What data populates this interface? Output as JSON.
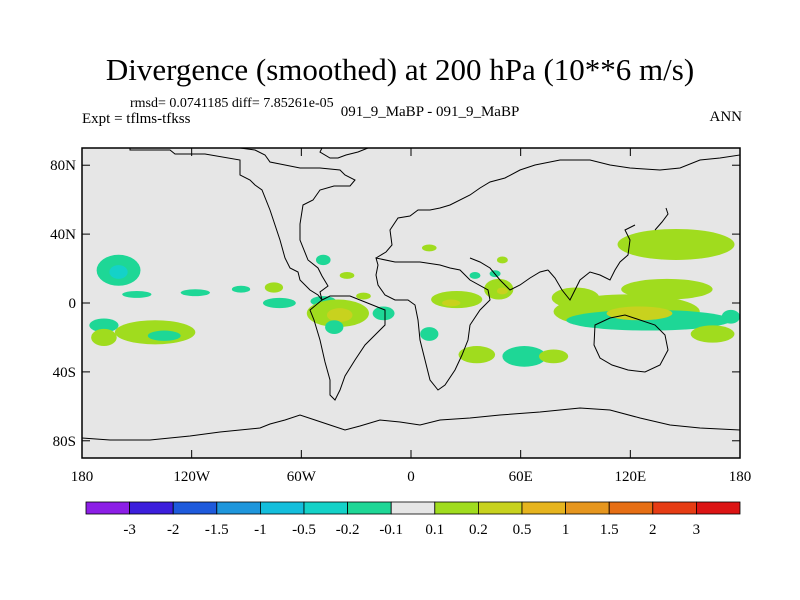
{
  "title": "Divergence (smoothed) at 200 hPa (10**6 m/s)",
  "stats": "rmsd= 0.0741185 diff= 7.85261e-05",
  "case_label": "091_9_MaBP - 091_9_MaBP",
  "experiment": "Expt = tflms-tfkss",
  "season": "ANN",
  "chart_data": {
    "type": "heatmap",
    "title": "Divergence (smoothed) at 200 hPa (10**6 m/s)",
    "x_ticks": [
      {
        "value": -180,
        "label": "180"
      },
      {
        "value": -120,
        "label": "120W"
      },
      {
        "value": -60,
        "label": "60W"
      },
      {
        "value": 0,
        "label": "0"
      },
      {
        "value": 60,
        "label": "60E"
      },
      {
        "value": 120,
        "label": "120E"
      },
      {
        "value": 180,
        "label": "180"
      }
    ],
    "y_ticks": [
      {
        "value": 80,
        "label": "80N"
      },
      {
        "value": 40,
        "label": "40N"
      },
      {
        "value": 0,
        "label": "0"
      },
      {
        "value": -40,
        "label": "40S"
      },
      {
        "value": -80,
        "label": "80S"
      }
    ],
    "xlim": [
      -180,
      180
    ],
    "ylim": [
      -90,
      90
    ],
    "background_color": "#e6e6e6",
    "colorbar": {
      "colors": [
        "#8c1ee6",
        "#3c1edc",
        "#1e5adc",
        "#1e96dc",
        "#14bedc",
        "#14d2c8",
        "#1ed796",
        "#e6e6e6",
        "#a0dc1e",
        "#c8d21e",
        "#e6b41e",
        "#e6961e",
        "#e66e14",
        "#e63c14",
        "#dc1414"
      ],
      "labels": [
        "-3",
        "-2",
        "-1.5",
        "-1",
        "-0.5",
        "-0.2",
        "-0.1",
        "0.1",
        "0.2",
        "0.5",
        "1",
        "1.5",
        "2",
        "3"
      ]
    },
    "anomalies": [
      {
        "lon": -160,
        "lat": 19,
        "rx": 12,
        "ry": 9,
        "level": "-0.1"
      },
      {
        "lon": -160,
        "lat": 18,
        "rx": 5,
        "ry": 4,
        "level": "-0.2"
      },
      {
        "lon": -150,
        "lat": 5,
        "rx": 8,
        "ry": 2,
        "level": "-0.1"
      },
      {
        "lon": -118,
        "lat": 6,
        "rx": 8,
        "ry": 2,
        "level": "-0.1"
      },
      {
        "lon": -168,
        "lat": -13,
        "rx": 8,
        "ry": 4,
        "level": "-0.1"
      },
      {
        "lon": -140,
        "lat": -17,
        "rx": 22,
        "ry": 7,
        "level": "0.1"
      },
      {
        "lon": -135,
        "lat": -19,
        "rx": 9,
        "ry": 3,
        "level": "-0.1"
      },
      {
        "lon": -168,
        "lat": -20,
        "rx": 7,
        "ry": 5,
        "level": "0.1"
      },
      {
        "lon": -93,
        "lat": 8,
        "rx": 5,
        "ry": 2,
        "level": "-0.1"
      },
      {
        "lon": -75,
        "lat": 9,
        "rx": 5,
        "ry": 3,
        "level": "0.1"
      },
      {
        "lon": -72,
        "lat": 0,
        "rx": 9,
        "ry": 3,
        "level": "-0.1"
      },
      {
        "lon": -48,
        "lat": 1,
        "rx": 7,
        "ry": 3,
        "level": "-0.1"
      },
      {
        "lon": -40,
        "lat": -6,
        "rx": 17,
        "ry": 8,
        "level": "0.1"
      },
      {
        "lon": -39,
        "lat": -7,
        "rx": 7,
        "ry": 4,
        "level": "0.2"
      },
      {
        "lon": -42,
        "lat": -14,
        "rx": 5,
        "ry": 4,
        "level": "-0.1"
      },
      {
        "lon": -26,
        "lat": 4,
        "rx": 4,
        "ry": 2,
        "level": "0.1"
      },
      {
        "lon": -48,
        "lat": 25,
        "rx": 4,
        "ry": 3,
        "level": "-0.1"
      },
      {
        "lon": -35,
        "lat": 16,
        "rx": 4,
        "ry": 2,
        "level": "0.1"
      },
      {
        "lon": -15,
        "lat": -6,
        "rx": 6,
        "ry": 4,
        "level": "-0.1"
      },
      {
        "lon": 10,
        "lat": -18,
        "rx": 5,
        "ry": 4,
        "level": "-0.1"
      },
      {
        "lon": 25,
        "lat": 2,
        "rx": 14,
        "ry": 5,
        "level": "0.1"
      },
      {
        "lon": 22,
        "lat": 0,
        "rx": 5,
        "ry": 2,
        "level": "0.2"
      },
      {
        "lon": 10,
        "lat": 32,
        "rx": 4,
        "ry": 2,
        "level": "0.1"
      },
      {
        "lon": 48,
        "lat": 8,
        "rx": 8,
        "ry": 6,
        "level": "0.1"
      },
      {
        "lon": 50,
        "lat": 7,
        "rx": 3,
        "ry": 2,
        "level": "0.2"
      },
      {
        "lon": 35,
        "lat": 16,
        "rx": 3,
        "ry": 2,
        "level": "-0.1"
      },
      {
        "lon": 46,
        "lat": 17,
        "rx": 3,
        "ry": 2,
        "level": "-0.1"
      },
      {
        "lon": 50,
        "lat": 25,
        "rx": 3,
        "ry": 2,
        "level": "0.1"
      },
      {
        "lon": 36,
        "lat": -30,
        "rx": 10,
        "ry": 5,
        "level": "0.1"
      },
      {
        "lon": 62,
        "lat": -31,
        "rx": 12,
        "ry": 6,
        "level": "-0.1"
      },
      {
        "lon": 78,
        "lat": -31,
        "rx": 8,
        "ry": 4,
        "level": "0.1"
      },
      {
        "lon": 90,
        "lat": 3,
        "rx": 13,
        "ry": 6,
        "level": "0.1"
      },
      {
        "lon": 118,
        "lat": -5,
        "rx": 40,
        "ry": 10,
        "level": "0.1"
      },
      {
        "lon": 130,
        "lat": -10,
        "rx": 45,
        "ry": 6,
        "level": "-0.1"
      },
      {
        "lon": 125,
        "lat": -6,
        "rx": 18,
        "ry": 4,
        "level": "0.2"
      },
      {
        "lon": 145,
        "lat": 34,
        "rx": 32,
        "ry": 9,
        "level": "0.1"
      },
      {
        "lon": 140,
        "lat": 8,
        "rx": 25,
        "ry": 6,
        "level": "0.1"
      },
      {
        "lon": 165,
        "lat": -18,
        "rx": 12,
        "ry": 5,
        "level": "0.1"
      },
      {
        "lon": 175,
        "lat": -8,
        "rx": 5,
        "ry": 4,
        "level": "-0.1"
      }
    ]
  }
}
